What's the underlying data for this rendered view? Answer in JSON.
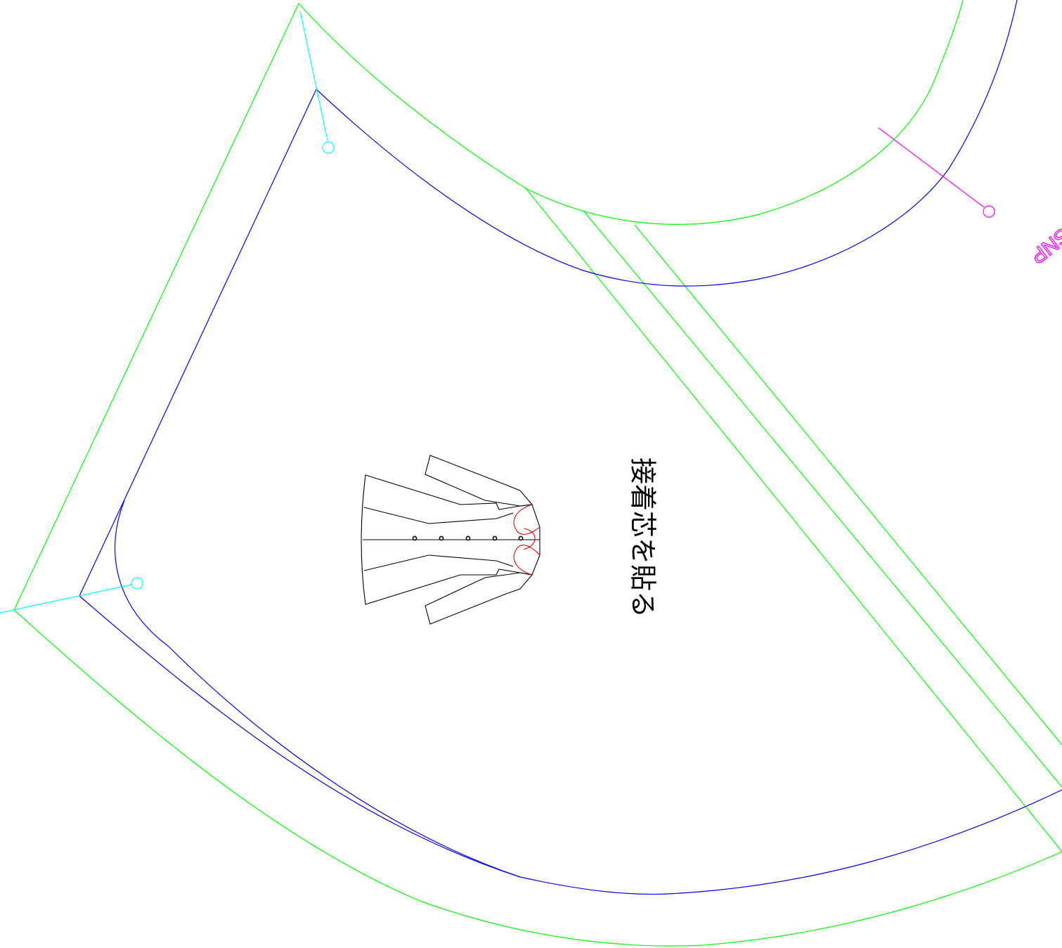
{
  "colors": {
    "seam_allowance": "#00ff00",
    "finished_line": "#0000ff",
    "notch": "#00ffff",
    "snp_marker": "#ff00ff",
    "sketch": "#000000",
    "interlining_highlight": "#ff0000",
    "background": "#ffffff"
  },
  "labels": {
    "instruction": "接着芯を貼る",
    "snp": "SNP"
  },
  "garment_sketch": {
    "description_icon": "jacket-icon",
    "button_count": 5
  }
}
